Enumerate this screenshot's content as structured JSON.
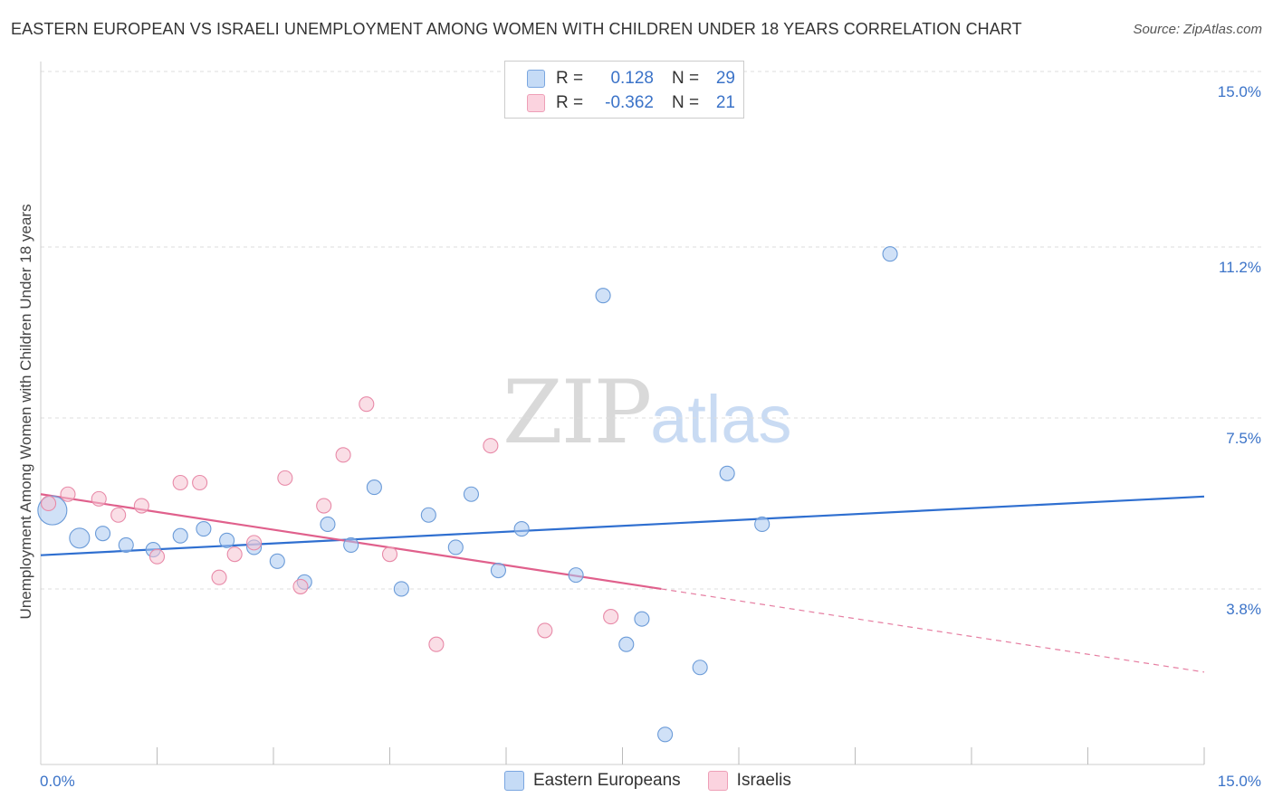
{
  "title": "EASTERN EUROPEAN VS ISRAELI UNEMPLOYMENT AMONG WOMEN WITH CHILDREN UNDER 18 YEARS CORRELATION CHART",
  "source": "Source: ZipAtlas.com",
  "watermark": {
    "zip": "ZIP",
    "atlas": "atlas"
  },
  "legend": {
    "rows": [
      {
        "r_label": "R =",
        "r_value": "0.128",
        "n_label": "N =",
        "n_value": "29",
        "color": "#a9c8f0"
      },
      {
        "r_label": "R =",
        "r_value": "-0.362",
        "n_label": "N =",
        "n_value": "21",
        "color": "#f5b8cb"
      }
    ]
  },
  "bottom_legend": [
    "Eastern Europeans",
    "Israelis"
  ],
  "chart_data": {
    "type": "scatter",
    "title": "EASTERN EUROPEAN VS ISRAELI UNEMPLOYMENT AMONG WOMEN WITH CHILDREN UNDER 18 YEARS CORRELATION CHART",
    "ylabel": "Unemployment Among Women with Children Under 18 years",
    "xlim": [
      0,
      15
    ],
    "ylim": [
      0,
      15
    ],
    "x_tick_labels": [
      "0.0%",
      "15.0%"
    ],
    "y_ticks": [
      3.8,
      7.5,
      11.2,
      15.0
    ],
    "y_tick_labels": [
      "3.8%",
      "7.5%",
      "11.2%",
      "15.0%"
    ],
    "series": [
      {
        "name": "Eastern Europeans",
        "color": "#a9c8f0",
        "stroke": "#6b9bd8",
        "line_color": "#2f6fd0",
        "points": [
          {
            "x": 0.15,
            "y": 5.5,
            "big": true
          },
          {
            "x": 0.5,
            "y": 4.9,
            "big": true
          },
          {
            "x": 0.8,
            "y": 5.0
          },
          {
            "x": 1.1,
            "y": 4.75
          },
          {
            "x": 1.45,
            "y": 4.65
          },
          {
            "x": 1.8,
            "y": 4.95
          },
          {
            "x": 2.1,
            "y": 5.1
          },
          {
            "x": 2.4,
            "y": 4.85
          },
          {
            "x": 2.75,
            "y": 4.7
          },
          {
            "x": 3.05,
            "y": 4.4
          },
          {
            "x": 3.4,
            "y": 3.95
          },
          {
            "x": 3.7,
            "y": 5.2
          },
          {
            "x": 4.0,
            "y": 4.75
          },
          {
            "x": 4.3,
            "y": 6.0
          },
          {
            "x": 4.65,
            "y": 3.8
          },
          {
            "x": 5.0,
            "y": 5.4
          },
          {
            "x": 5.35,
            "y": 4.7
          },
          {
            "x": 5.55,
            "y": 5.85
          },
          {
            "x": 5.9,
            "y": 4.2
          },
          {
            "x": 6.2,
            "y": 5.1
          },
          {
            "x": 6.9,
            "y": 4.1
          },
          {
            "x": 7.25,
            "y": 10.15
          },
          {
            "x": 7.55,
            "y": 2.6
          },
          {
            "x": 7.75,
            "y": 3.15
          },
          {
            "x": 8.05,
            "y": 0.65
          },
          {
            "x": 8.5,
            "y": 2.1
          },
          {
            "x": 8.85,
            "y": 6.3
          },
          {
            "x": 9.3,
            "y": 5.2
          },
          {
            "x": 10.95,
            "y": 11.05
          }
        ],
        "trend": {
          "x1": 0,
          "y1": 4.53,
          "x2": 15,
          "y2": 5.8
        }
      },
      {
        "name": "Israelis",
        "color": "#f5c2d2",
        "stroke": "#e88aa8",
        "line_color": "#e0608c",
        "points": [
          {
            "x": 0.1,
            "y": 5.65
          },
          {
            "x": 0.35,
            "y": 5.85
          },
          {
            "x": 0.75,
            "y": 5.75
          },
          {
            "x": 1.0,
            "y": 5.4
          },
          {
            "x": 1.3,
            "y": 5.6
          },
          {
            "x": 1.5,
            "y": 4.5
          },
          {
            "x": 1.8,
            "y": 6.1
          },
          {
            "x": 2.05,
            "y": 6.1
          },
          {
            "x": 2.3,
            "y": 4.05
          },
          {
            "x": 2.5,
            "y": 4.55
          },
          {
            "x": 2.75,
            "y": 4.8
          },
          {
            "x": 3.15,
            "y": 6.2
          },
          {
            "x": 3.35,
            "y": 3.85
          },
          {
            "x": 3.65,
            "y": 5.6
          },
          {
            "x": 3.9,
            "y": 6.7
          },
          {
            "x": 4.2,
            "y": 7.8
          },
          {
            "x": 4.5,
            "y": 4.55
          },
          {
            "x": 5.1,
            "y": 2.6
          },
          {
            "x": 5.8,
            "y": 6.9
          },
          {
            "x": 6.5,
            "y": 2.9
          },
          {
            "x": 7.35,
            "y": 3.2
          }
        ],
        "trend": {
          "x1": 0,
          "y1": 5.85,
          "x2": 8.0,
          "y2": 3.8
        },
        "trend_dashed": {
          "x1": 8.0,
          "y1": 3.8,
          "x2": 15,
          "y2": 2.0
        }
      }
    ]
  }
}
